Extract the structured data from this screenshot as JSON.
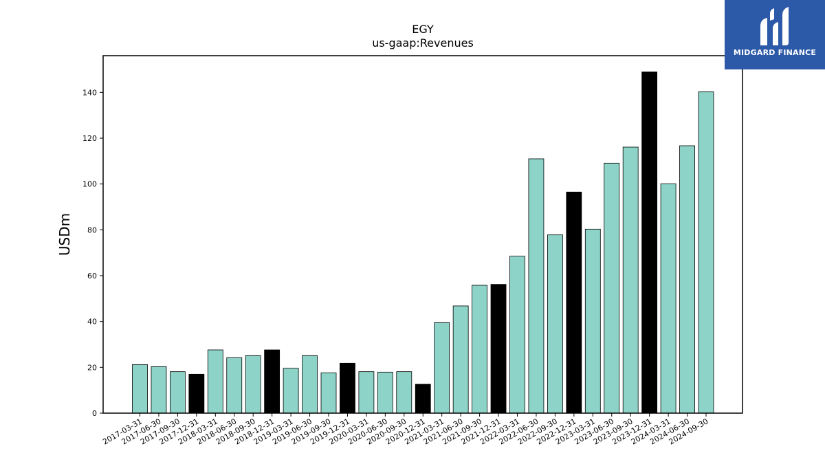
{
  "chart_data": {
    "type": "bar",
    "title": "EGY",
    "subtitle": "us-gaap:Revenues",
    "xlabel": "",
    "ylabel": "USDm",
    "ylim": [
      0,
      156
    ],
    "yticks": [
      0,
      20,
      40,
      60,
      80,
      100,
      120,
      140
    ],
    "grid": false,
    "categories": [
      "2017-03-31",
      "2017-06-30",
      "2017-09-30",
      "2017-12-31",
      "2018-03-31",
      "2018-06-30",
      "2018-09-30",
      "2018-12-31",
      "2019-03-31",
      "2019-06-30",
      "2019-09-30",
      "2019-12-31",
      "2020-03-31",
      "2020-06-30",
      "2020-09-30",
      "2020-12-31",
      "2021-03-31",
      "2021-06-30",
      "2021-09-30",
      "2021-12-31",
      "2022-03-31",
      "2022-06-30",
      "2022-09-30",
      "2022-12-31",
      "2023-03-31",
      "2023-06-30",
      "2023-09-30",
      "2023-12-31",
      "2024-03-31",
      "2024-06-30",
      "2024-09-30"
    ],
    "values": [
      21.2,
      20.3,
      18.1,
      17.0,
      27.6,
      24.2,
      25.1,
      27.6,
      19.6,
      25.1,
      17.6,
      21.8,
      18.1,
      17.9,
      18.1,
      12.6,
      39.5,
      46.8,
      55.8,
      56.2,
      68.5,
      111.0,
      77.8,
      96.5,
      80.3,
      109.1,
      116.1,
      148.9,
      100.1,
      116.7,
      140.2
    ],
    "bar_colors": [
      "#8dd3c7",
      "#8dd3c7",
      "#8dd3c7",
      "#000000",
      "#8dd3c7",
      "#8dd3c7",
      "#8dd3c7",
      "#000000",
      "#8dd3c7",
      "#8dd3c7",
      "#8dd3c7",
      "#000000",
      "#8dd3c7",
      "#8dd3c7",
      "#8dd3c7",
      "#000000",
      "#8dd3c7",
      "#8dd3c7",
      "#8dd3c7",
      "#000000",
      "#8dd3c7",
      "#8dd3c7",
      "#8dd3c7",
      "#000000",
      "#8dd3c7",
      "#8dd3c7",
      "#8dd3c7",
      "#000000",
      "#8dd3c7",
      "#8dd3c7",
      "#8dd3c7"
    ]
  },
  "logo": {
    "text": "MIDGARD FINANCE",
    "background": "#2c5aa8"
  }
}
